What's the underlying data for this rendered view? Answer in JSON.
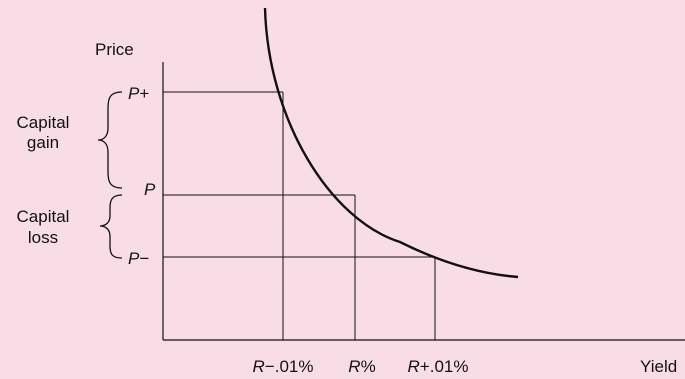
{
  "colors": {
    "background": "#f9dde6",
    "ink": "#111111"
  },
  "axes": {
    "y_label": "Price",
    "x_label": "Yield"
  },
  "price_levels": {
    "high": {
      "letter": "P",
      "sign": "+"
    },
    "mid": {
      "letter": "P",
      "sign": ""
    },
    "low": {
      "letter": "P",
      "sign": "−"
    }
  },
  "yield_levels": {
    "low": {
      "letter": "R",
      "suffix": "−.01%"
    },
    "mid": {
      "letter": "R",
      "suffix": "%"
    },
    "high": {
      "letter": "R",
      "suffix": "+.01%"
    }
  },
  "brackets": {
    "gain": {
      "line1": "Capital",
      "line2": "gain"
    },
    "loss": {
      "line1": "Capital",
      "line2": "loss"
    }
  },
  "curve": {
    "shape": "convex, downward-sloping price–yield curve"
  }
}
